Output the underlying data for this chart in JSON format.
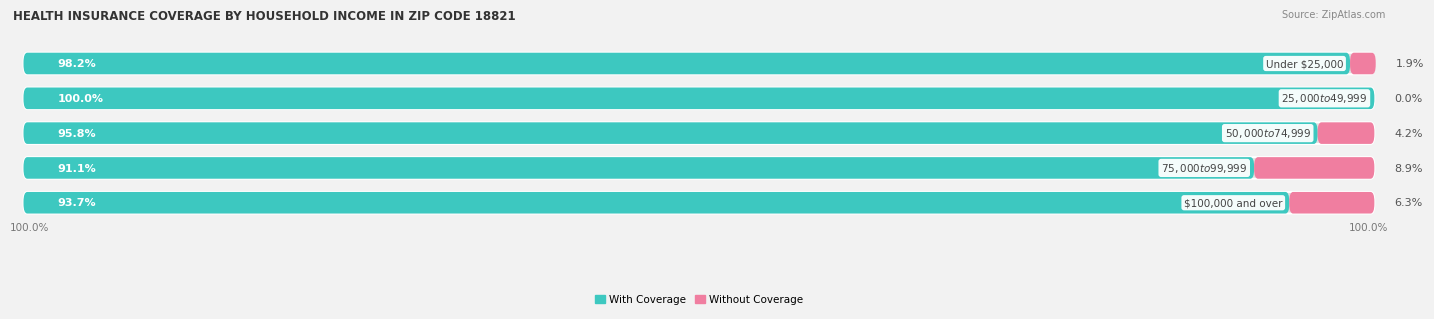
{
  "title": "HEALTH INSURANCE COVERAGE BY HOUSEHOLD INCOME IN ZIP CODE 18821",
  "source": "Source: ZipAtlas.com",
  "categories": [
    "Under $25,000",
    "$25,000 to $49,999",
    "$50,000 to $74,999",
    "$75,000 to $99,999",
    "$100,000 and over"
  ],
  "with_coverage": [
    98.2,
    100.0,
    95.8,
    91.1,
    93.7
  ],
  "without_coverage": [
    1.9,
    0.0,
    4.2,
    8.9,
    6.3
  ],
  "color_with": "#3DC8C0",
  "color_without": "#F07EA0",
  "background_color": "#f2f2f2",
  "bar_bg_color": "#e0e0e0",
  "title_fontsize": 8.5,
  "label_fontsize": 8,
  "tick_fontsize": 7.5,
  "source_fontsize": 7,
  "legend_fontsize": 7.5,
  "left_pct_label": "100.0%",
  "right_pct_label": "100.0%"
}
